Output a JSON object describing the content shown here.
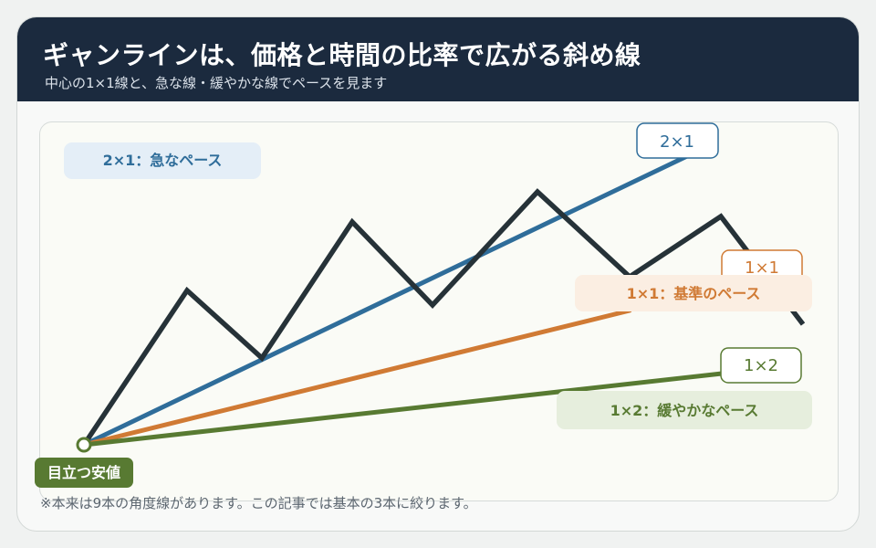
{
  "header": {
    "title": "ギャンラインは、価格と時間の比率で広がる斜め線",
    "subtitle": "中心の1×1線と、急な線・緩やかな線でペースを見ます"
  },
  "diagram": {
    "lines": [
      {
        "id": "2x1",
        "tag": "2×1",
        "legend": "2×1：急なペース",
        "color": "#2f6d9a",
        "legend_bg": "#e4eef7"
      },
      {
        "id": "1x1",
        "tag": "1×1",
        "legend": "1×1：基準のペース",
        "color": "#d07a34",
        "legend_bg": "#fbeee2"
      },
      {
        "id": "1x2",
        "tag": "1×2",
        "legend": "1×2：緩やかなペース",
        "color": "#587a32",
        "legend_bg": "#e6eedd"
      }
    ],
    "price_line_color": "#263238",
    "anchor_label": "目立つ安値",
    "anchor_color": "#587a32"
  },
  "footnote": "※本来は9本の角度線があります。この記事では基本の3本に絞ります。"
}
